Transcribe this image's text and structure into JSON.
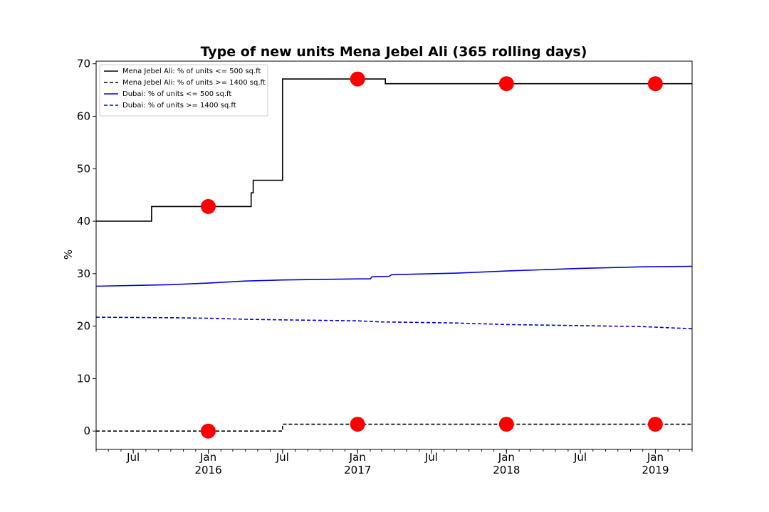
{
  "chart_data": {
    "type": "line",
    "title": "Type of new units Mena Jebel Ali (365 rolling days)",
    "xlabel": "",
    "ylabel": "%",
    "ylim": [
      -3.5,
      70.5
    ],
    "xlim": [
      "2015-04-01",
      "2019-04-01"
    ],
    "y_ticks": [
      0,
      10,
      20,
      30,
      40,
      50,
      60,
      70
    ],
    "x_ticks": [
      {
        "date": "2015-07-01",
        "label": "Jul",
        "sublabel": ""
      },
      {
        "date": "2016-01-01",
        "label": "Jan",
        "sublabel": "2016"
      },
      {
        "date": "2016-07-01",
        "label": "Jul",
        "sublabel": ""
      },
      {
        "date": "2017-01-01",
        "label": "Jan",
        "sublabel": "2017"
      },
      {
        "date": "2017-07-01",
        "label": "Jul",
        "sublabel": ""
      },
      {
        "date": "2018-01-01",
        "label": "Jan",
        "sublabel": "2018"
      },
      {
        "date": "2018-07-01",
        "label": "Jul",
        "sublabel": ""
      },
      {
        "date": "2019-01-01",
        "label": "Jan",
        "sublabel": "2019"
      }
    ],
    "grid": false,
    "legend_position": "top-left",
    "series": [
      {
        "name": "Mena Jebel Ali: % of units <= 500 sq.ft",
        "color": "#000000",
        "style": "solid",
        "points": [
          [
            "2015-04-01",
            40.0
          ],
          [
            "2015-08-15",
            40.0
          ],
          [
            "2015-08-15",
            42.8
          ],
          [
            "2016-04-15",
            42.8
          ],
          [
            "2016-04-15",
            45.4
          ],
          [
            "2016-04-20",
            45.4
          ],
          [
            "2016-04-20",
            47.8
          ],
          [
            "2016-07-01",
            47.8
          ],
          [
            "2016-07-01",
            67.1
          ],
          [
            "2017-03-10",
            67.1
          ],
          [
            "2017-03-10",
            66.2
          ],
          [
            "2019-04-01",
            66.2
          ]
        ]
      },
      {
        "name": "Mena Jebel Ali: % of units >= 1400 sq.ft",
        "color": "#000000",
        "style": "dashed",
        "points": [
          [
            "2015-04-01",
            0.0
          ],
          [
            "2016-07-01",
            0.0
          ],
          [
            "2016-07-01",
            1.3
          ],
          [
            "2019-04-01",
            1.3
          ]
        ]
      },
      {
        "name": "Dubai: % of units <= 500 sq.ft",
        "color": "#0000dd",
        "style": "solid",
        "points": [
          [
            "2015-04-01",
            27.6
          ],
          [
            "2015-10-01",
            27.9
          ],
          [
            "2016-01-01",
            28.2
          ],
          [
            "2016-04-01",
            28.6
          ],
          [
            "2016-07-01",
            28.8
          ],
          [
            "2017-01-01",
            29.0
          ],
          [
            "2017-02-01",
            29.0
          ],
          [
            "2017-02-05",
            29.4
          ],
          [
            "2017-03-20",
            29.5
          ],
          [
            "2017-03-25",
            29.8
          ],
          [
            "2017-09-01",
            30.1
          ],
          [
            "2018-01-01",
            30.5
          ],
          [
            "2018-07-01",
            31.0
          ],
          [
            "2018-12-01",
            31.3
          ],
          [
            "2019-04-01",
            31.4
          ]
        ]
      },
      {
        "name": "Dubai: % of units >= 1400 sq.ft",
        "color": "#0000dd",
        "style": "dashed",
        "points": [
          [
            "2015-04-01",
            21.7
          ],
          [
            "2015-10-01",
            21.6
          ],
          [
            "2016-01-01",
            21.5
          ],
          [
            "2016-04-01",
            21.3
          ],
          [
            "2016-07-01",
            21.2
          ],
          [
            "2017-01-01",
            21.0
          ],
          [
            "2017-03-01",
            20.8
          ],
          [
            "2017-09-01",
            20.6
          ],
          [
            "2018-01-01",
            20.3
          ],
          [
            "2018-07-01",
            20.1
          ],
          [
            "2018-12-01",
            19.9
          ],
          [
            "2019-04-01",
            19.5
          ]
        ]
      }
    ],
    "markers": {
      "color": "#ff0000",
      "points": [
        [
          "2016-01-01",
          42.8
        ],
        [
          "2016-01-01",
          0.0
        ],
        [
          "2017-01-01",
          67.1
        ],
        [
          "2017-01-01",
          1.3
        ],
        [
          "2018-01-01",
          66.2
        ],
        [
          "2018-01-01",
          1.3
        ],
        [
          "2019-01-01",
          66.2
        ],
        [
          "2019-01-01",
          1.3
        ]
      ]
    }
  }
}
